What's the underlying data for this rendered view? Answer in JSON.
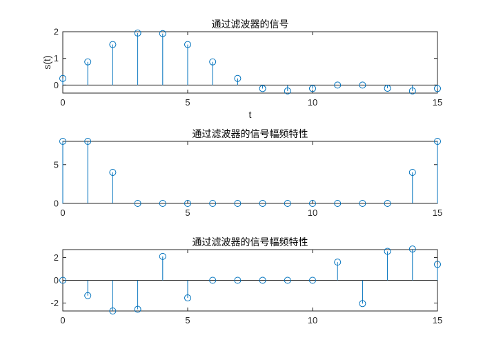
{
  "figure": {
    "colors": {
      "series": "#0072BD",
      "axes": "#262626"
    }
  },
  "chart_data": [
    {
      "type": "stem",
      "title": "通过滤波器的信号",
      "xlabel": "t",
      "ylabel": "s(t)",
      "xlim": [
        0,
        15
      ],
      "ylim": [
        -0.3,
        2
      ],
      "xticks": [
        0,
        5,
        10,
        15
      ],
      "yticks": [
        0,
        1,
        2
      ],
      "grid": false,
      "x": [
        0,
        1,
        2,
        3,
        4,
        5,
        6,
        7,
        8,
        9,
        10,
        11,
        12,
        13,
        14,
        15
      ],
      "values": [
        0.25,
        0.87,
        1.52,
        1.95,
        1.93,
        1.52,
        0.87,
        0.25,
        -0.13,
        -0.22,
        -0.13,
        0.0,
        0.0,
        -0.12,
        -0.22,
        -0.13
      ]
    },
    {
      "type": "stem",
      "title": "通过滤波器的信号幅频特性",
      "xlabel": "",
      "ylabel": "",
      "xlim": [
        0,
        15
      ],
      "ylim": [
        0,
        8
      ],
      "xticks": [
        0,
        5,
        10,
        15
      ],
      "yticks": [
        0,
        5
      ],
      "grid": false,
      "x": [
        0,
        1,
        2,
        3,
        4,
        5,
        6,
        7,
        8,
        9,
        10,
        11,
        12,
        13,
        14,
        15
      ],
      "values": [
        8,
        8,
        4,
        0,
        0,
        0,
        0,
        0,
        0,
        0,
        0,
        0,
        0,
        0,
        4,
        8
      ]
    },
    {
      "type": "stem",
      "title": "通过滤波器的信号幅频特性",
      "xlabel": "",
      "ylabel": "",
      "xlim": [
        0,
        15
      ],
      "ylim": [
        -2.7,
        2.7
      ],
      "xticks": [
        0,
        5,
        10,
        15
      ],
      "yticks": [
        -2,
        0,
        2
      ],
      "grid": false,
      "x": [
        0,
        1,
        2,
        3,
        4,
        5,
        6,
        7,
        8,
        9,
        10,
        11,
        12,
        13,
        14,
        15
      ],
      "values": [
        0,
        -1.35,
        -2.7,
        -2.55,
        2.1,
        -1.55,
        0,
        0,
        0,
        0,
        0,
        1.6,
        -2.05,
        2.55,
        2.75,
        1.4
      ]
    }
  ]
}
